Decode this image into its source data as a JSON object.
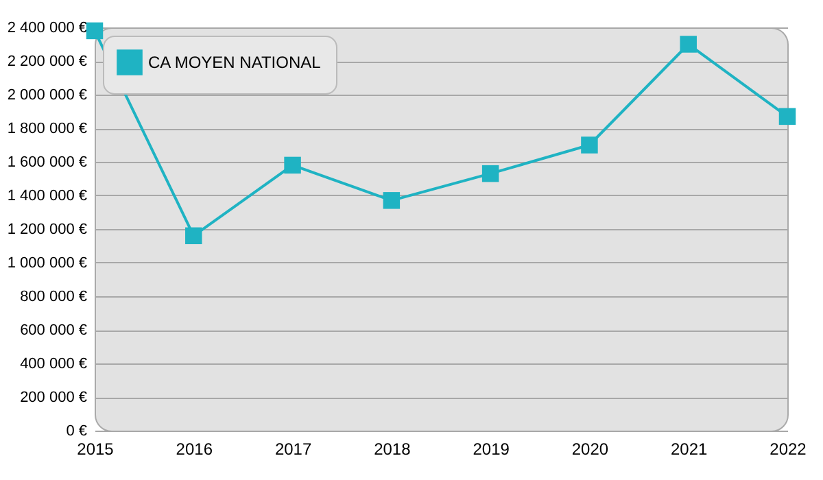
{
  "chart_data": {
    "type": "line",
    "categories": [
      "2015",
      "2016",
      "2017",
      "2018",
      "2019",
      "2020",
      "2021",
      "2022"
    ],
    "series": [
      {
        "name": "CA MOYEN NATIONAL",
        "color": "#1fb3c3",
        "values": [
          2380000,
          1160000,
          1580000,
          1370000,
          1530000,
          1700000,
          2300000,
          1870000
        ]
      }
    ],
    "ylim": [
      0,
      2400000
    ],
    "yticks": [
      {
        "value": 0,
        "label": "0 €"
      },
      {
        "value": 200000,
        "label": "200 000 €"
      },
      {
        "value": 400000,
        "label": "400 000 €"
      },
      {
        "value": 600000,
        "label": "600 000 €"
      },
      {
        "value": 800000,
        "label": "800 000 €"
      },
      {
        "value": 1000000,
        "label": "1 000 000 €"
      },
      {
        "value": 1200000,
        "label": "1 200 000 €"
      },
      {
        "value": 1400000,
        "label": "1 400 000 €"
      },
      {
        "value": 1600000,
        "label": "1 600 000 €"
      },
      {
        "value": 1800000,
        "label": "1 800 000 €"
      },
      {
        "value": 2000000,
        "label": "2 000 000 €"
      },
      {
        "value": 2200000,
        "label": "2 200 000 €"
      },
      {
        "value": 2400000,
        "label": "2 400 000 €"
      }
    ],
    "grid": "y",
    "legend": "top left",
    "marker": "square",
    "line_style": "solid"
  }
}
